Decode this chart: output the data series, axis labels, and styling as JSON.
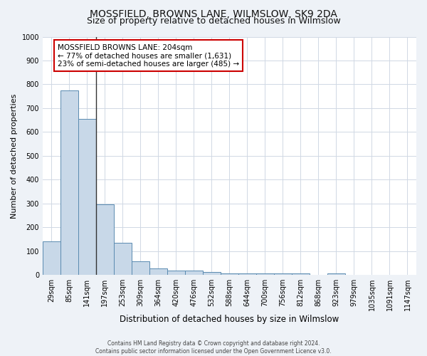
{
  "title": "MOSSFIELD, BROWNS LANE, WILMSLOW, SK9 2DA",
  "subtitle": "Size of property relative to detached houses in Wilmslow",
  "xlabel": "Distribution of detached houses by size in Wilmslow",
  "ylabel": "Number of detached properties",
  "bar_labels": [
    "29sqm",
    "85sqm",
    "141sqm",
    "197sqm",
    "253sqm",
    "309sqm",
    "364sqm",
    "420sqm",
    "476sqm",
    "532sqm",
    "588sqm",
    "644sqm",
    "700sqm",
    "756sqm",
    "812sqm",
    "868sqm",
    "923sqm",
    "979sqm",
    "1035sqm",
    "1091sqm",
    "1147sqm"
  ],
  "bar_values": [
    140,
    775,
    655,
    295,
    135,
    57,
    28,
    18,
    18,
    13,
    8,
    8,
    8,
    8,
    8,
    0,
    8,
    0,
    0,
    0,
    0
  ],
  "bar_color": "#c8d8e8",
  "bar_edge_color": "#5a8ab0",
  "annotation_title": "MOSSFIELD BROWNS LANE: 204sqm",
  "annotation_line1": "← 77% of detached houses are smaller (1,631)",
  "annotation_line2": "23% of semi-detached houses are larger (485) →",
  "annotation_box_color": "#ffffff",
  "annotation_box_edge": "#cc0000",
  "marker_line_bar_index": 2.5,
  "ylim": [
    0,
    1000
  ],
  "yticks": [
    0,
    100,
    200,
    300,
    400,
    500,
    600,
    700,
    800,
    900,
    1000
  ],
  "footer_line1": "Contains HM Land Registry data © Crown copyright and database right 2024.",
  "footer_line2": "Contains public sector information licensed under the Open Government Licence v3.0.",
  "bg_color": "#eef2f7",
  "plot_bg_color": "#ffffff",
  "grid_color": "#d0d8e4",
  "title_fontsize": 10,
  "subtitle_fontsize": 9,
  "xlabel_fontsize": 8.5,
  "ylabel_fontsize": 8,
  "tick_fontsize": 7,
  "annotation_fontsize": 7.5,
  "footer_fontsize": 5.5
}
